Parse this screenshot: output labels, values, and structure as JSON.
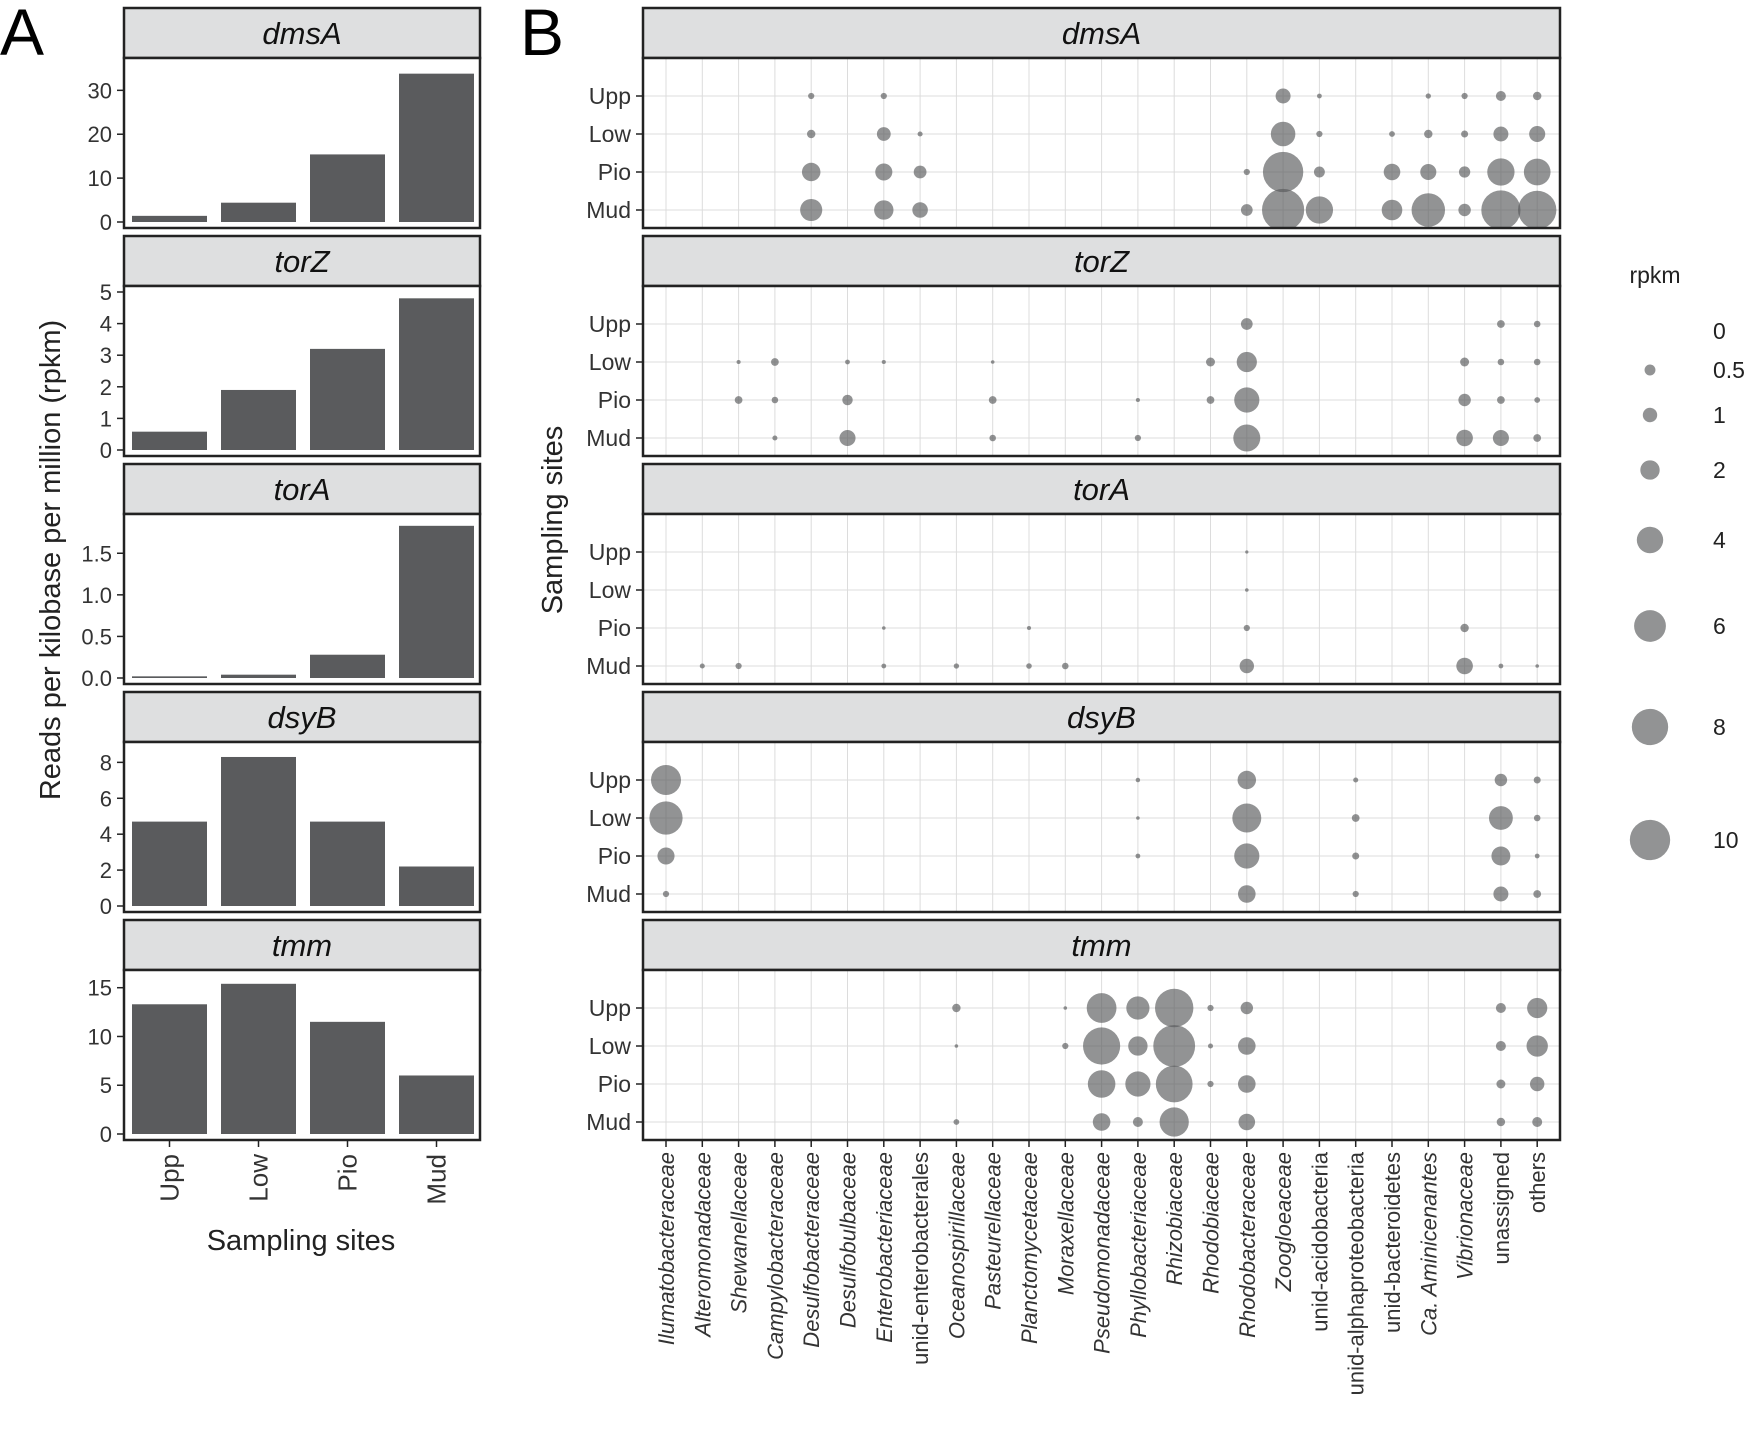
{
  "panel_letters": {
    "a": "A",
    "b": "B"
  },
  "panel_a": {
    "ylabel": "Reads per kilobase per million (rpkm)",
    "xlabel": "Sampling sites"
  },
  "panel_b": {
    "ylabel": "Sampling sites",
    "legend_title": "rpkm",
    "legend": {
      "labels": [
        "0",
        "0.5",
        "1",
        "2",
        "4",
        "6",
        "8",
        "10"
      ],
      "values": [
        0,
        0.5,
        1,
        2,
        4,
        6,
        8,
        10
      ]
    }
  },
  "colors": {
    "bar": "#5a5b5d",
    "bubble": "#58595b",
    "strip": "#dedfe0",
    "grid": "#dcdcdc"
  },
  "chart_data": [
    {
      "panel": "A",
      "type": "bar",
      "title": "dmsA",
      "categories": [
        "Upp",
        "Low",
        "Pio",
        "Mud"
      ],
      "values": [
        1.4,
        4.4,
        15.4,
        33.8
      ],
      "ylim": [
        0,
        36
      ],
      "yticks": [
        0,
        10,
        20,
        30
      ]
    },
    {
      "panel": "A",
      "type": "bar",
      "title": "torZ",
      "categories": [
        "Upp",
        "Low",
        "Pio",
        "Mud"
      ],
      "values": [
        0.58,
        1.9,
        3.2,
        4.8
      ],
      "ylim": [
        0,
        5.0
      ],
      "yticks": [
        0,
        1,
        2,
        3,
        4,
        5
      ]
    },
    {
      "panel": "A",
      "type": "bar",
      "title": "torA",
      "categories": [
        "Upp",
        "Low",
        "Pio",
        "Mud"
      ],
      "values": [
        0.02,
        0.04,
        0.28,
        1.83
      ],
      "ylim": [
        0,
        1.9
      ],
      "yticks": [
        0.0,
        0.5,
        1.0,
        1.5
      ],
      "ytick_labels": [
        "0.0",
        "0.5",
        "1.0",
        "1.5"
      ]
    },
    {
      "panel": "A",
      "type": "bar",
      "title": "dsyB",
      "categories": [
        "Upp",
        "Low",
        "Pio",
        "Mud"
      ],
      "values": [
        4.7,
        8.3,
        4.7,
        2.2
      ],
      "ylim": [
        0,
        8.8
      ],
      "yticks": [
        0,
        2,
        4,
        6,
        8
      ]
    },
    {
      "panel": "A",
      "type": "bar",
      "title": "tmm",
      "categories": [
        "Upp",
        "Low",
        "Pio",
        "Mud"
      ],
      "values": [
        13.3,
        15.4,
        11.5,
        6.0
      ],
      "ylim": [
        0,
        16.2
      ],
      "yticks": [
        0,
        5,
        10,
        15
      ]
    },
    {
      "panel": "B",
      "type": "scatter",
      "sites": [
        "Upp",
        "Low",
        "Pio",
        "Mud"
      ],
      "taxa": [
        {
          "label": "Ilumatobacteraceae",
          "italic": true
        },
        {
          "label": "Alteromonadaceae",
          "italic": true
        },
        {
          "label": "Shewanellaceae",
          "italic": true
        },
        {
          "label": "Campylobacteraceae",
          "italic": true
        },
        {
          "label": "Desulfobacteraceae",
          "italic": true
        },
        {
          "label": "Desulfobulbaceae",
          "italic": true
        },
        {
          "label": "Enterobacteriaceae",
          "italic": true
        },
        {
          "label": "unid-enterobacterales",
          "italic": false
        },
        {
          "label": "Oceanospirillaceae",
          "italic": true
        },
        {
          "label": "Pasteurellaceae",
          "italic": true
        },
        {
          "label": "Planctomycetaceae",
          "italic": true
        },
        {
          "label": "Moraxellaceae",
          "italic": true
        },
        {
          "label": "Pseudomonadaceae",
          "italic": true
        },
        {
          "label": "Phyllobacteriaceae",
          "italic": true
        },
        {
          "label": "Rhizobiaceae",
          "italic": true
        },
        {
          "label": "Rhodobiaceae",
          "italic": true
        },
        {
          "label": "Rhodobacteraceae",
          "italic": true
        },
        {
          "label": "Zoogloeaceae",
          "italic": true
        },
        {
          "label": "unid-acidobacteria",
          "italic": false
        },
        {
          "label": "unid-alphaproteobacteria",
          "italic": false
        },
        {
          "label": "unid-bacteroidetes",
          "italic": false
        },
        {
          "label": "Ca. Aminicenantes",
          "italic": true
        },
        {
          "label": "Vibrionaceae",
          "italic": true
        },
        {
          "label": "unassigned",
          "italic": false
        },
        {
          "label": "others",
          "italic": false
        }
      ],
      "facets": [
        {
          "gene": "dmsA",
          "points": [
            [
              4,
              "Upp",
              0.1
            ],
            [
              4,
              "Low",
              0.25
            ],
            [
              4,
              "Pio",
              1.8
            ],
            [
              4,
              "Mud",
              2.7
            ],
            [
              6,
              "Upp",
              0.1
            ],
            [
              6,
              "Low",
              0.9
            ],
            [
              6,
              "Pio",
              1.5
            ],
            [
              6,
              "Mud",
              2.0
            ],
            [
              7,
              "Low",
              0.05
            ],
            [
              7,
              "Pio",
              0.75
            ],
            [
              7,
              "Mud",
              1.2
            ],
            [
              16,
              "Pio",
              0.1
            ],
            [
              16,
              "Mud",
              0.6
            ],
            [
              17,
              "Upp",
              1.1
            ],
            [
              17,
              "Low",
              3.4
            ],
            [
              17,
              "Pio",
              10.0
            ],
            [
              17,
              "Mud",
              11.0
            ],
            [
              18,
              "Upp",
              0.04
            ],
            [
              18,
              "Low",
              0.1
            ],
            [
              18,
              "Pio",
              0.5
            ],
            [
              18,
              "Mud",
              4.3
            ],
            [
              20,
              "Low",
              0.08
            ],
            [
              20,
              "Pio",
              1.4
            ],
            [
              20,
              "Mud",
              2.3
            ],
            [
              21,
              "Upp",
              0.06
            ],
            [
              21,
              "Low",
              0.25
            ],
            [
              21,
              "Pio",
              1.3
            ],
            [
              21,
              "Mud",
              6.7
            ],
            [
              22,
              "Upp",
              0.1
            ],
            [
              22,
              "Low",
              0.15
            ],
            [
              22,
              "Pio",
              0.55
            ],
            [
              22,
              "Mud",
              0.7
            ],
            [
              23,
              "Upp",
              0.4
            ],
            [
              23,
              "Low",
              1.1
            ],
            [
              23,
              "Pio",
              4.3
            ],
            [
              23,
              "Mud",
              9.4
            ],
            [
              24,
              "Upp",
              0.25
            ],
            [
              24,
              "Low",
              1.3
            ],
            [
              24,
              "Pio",
              4.1
            ],
            [
              24,
              "Mud",
              9.0
            ]
          ]
        },
        {
          "gene": "torZ",
          "points": [
            [
              2,
              "Low",
              0.02
            ],
            [
              2,
              "Pio",
              0.2
            ],
            [
              3,
              "Low",
              0.2
            ],
            [
              3,
              "Pio",
              0.12
            ],
            [
              3,
              "Mud",
              0.05
            ],
            [
              5,
              "Low",
              0.04
            ],
            [
              5,
              "Pio",
              0.45
            ],
            [
              5,
              "Mud",
              1.3
            ],
            [
              6,
              "Low",
              0.02
            ],
            [
              9,
              "Low",
              0.01
            ],
            [
              9,
              "Pio",
              0.2
            ],
            [
              9,
              "Mud",
              0.12
            ],
            [
              13,
              "Pio",
              0.02
            ],
            [
              13,
              "Mud",
              0.1
            ],
            [
              15,
              "Low",
              0.3
            ],
            [
              15,
              "Pio",
              0.2
            ],
            [
              16,
              "Upp",
              0.6
            ],
            [
              16,
              "Low",
              2.2
            ],
            [
              16,
              "Pio",
              3.6
            ],
            [
              16,
              "Mud",
              4.2
            ],
            [
              22,
              "Low",
              0.3
            ],
            [
              22,
              "Pio",
              0.7
            ],
            [
              22,
              "Mud",
              1.4
            ],
            [
              23,
              "Upp",
              0.2
            ],
            [
              23,
              "Low",
              0.12
            ],
            [
              23,
              "Pio",
              0.2
            ],
            [
              23,
              "Mud",
              1.3
            ],
            [
              24,
              "Upp",
              0.12
            ],
            [
              24,
              "Low",
              0.12
            ],
            [
              24,
              "Pio",
              0.08
            ],
            [
              24,
              "Mud",
              0.2
            ]
          ]
        },
        {
          "gene": "torA",
          "points": [
            [
              1,
              "Mud",
              0.05
            ],
            [
              2,
              "Mud",
              0.1
            ],
            [
              6,
              "Pio",
              0.01
            ],
            [
              6,
              "Mud",
              0.04
            ],
            [
              8,
              "Mud",
              0.06
            ],
            [
              10,
              "Pio",
              0.02
            ],
            [
              10,
              "Mud",
              0.07
            ],
            [
              11,
              "Mud",
              0.12
            ],
            [
              16,
              "Upp",
              0.005
            ],
            [
              16,
              "Low",
              0.01
            ],
            [
              16,
              "Pio",
              0.1
            ],
            [
              16,
              "Mud",
              1.0
            ],
            [
              22,
              "Pio",
              0.25
            ],
            [
              22,
              "Mud",
              1.4
            ],
            [
              23,
              "Mud",
              0.04
            ],
            [
              24,
              "Mud",
              0.01
            ]
          ]
        },
        {
          "gene": "dsyB",
          "points": [
            [
              0,
              "Upp",
              5.3
            ],
            [
              0,
              "Low",
              6.6
            ],
            [
              0,
              "Pio",
              1.5
            ],
            [
              0,
              "Mud",
              0.1
            ],
            [
              13,
              "Upp",
              0.03
            ],
            [
              13,
              "Low",
              0.01
            ],
            [
              13,
              "Pio",
              0.04
            ],
            [
              16,
              "Upp",
              1.8
            ],
            [
              16,
              "Low",
              4.9
            ],
            [
              16,
              "Pio",
              3.6
            ],
            [
              16,
              "Mud",
              1.6
            ],
            [
              19,
              "Upp",
              0.05
            ],
            [
              19,
              "Low",
              0.2
            ],
            [
              19,
              "Pio",
              0.15
            ],
            [
              19,
              "Mud",
              0.1
            ],
            [
              23,
              "Upp",
              0.7
            ],
            [
              23,
              "Low",
              3.2
            ],
            [
              23,
              "Pio",
              1.9
            ],
            [
              23,
              "Mud",
              1.1
            ],
            [
              24,
              "Upp",
              0.15
            ],
            [
              24,
              "Low",
              0.12
            ],
            [
              24,
              "Pio",
              0.04
            ],
            [
              24,
              "Mud",
              0.2
            ]
          ]
        },
        {
          "gene": "tmm",
          "points": [
            [
              8,
              "Upp",
              0.25
            ],
            [
              8,
              "Low",
              0.01
            ],
            [
              8,
              "Mud",
              0.08
            ],
            [
              11,
              "Upp",
              0.01
            ],
            [
              11,
              "Low",
              0.1
            ],
            [
              12,
              "Upp",
              5.2
            ],
            [
              12,
              "Low",
              8.4
            ],
            [
              12,
              "Pio",
              4.4
            ],
            [
              12,
              "Mud",
              1.6
            ],
            [
              13,
              "Upp",
              3.0
            ],
            [
              13,
              "Low",
              2.0
            ],
            [
              13,
              "Pio",
              3.6
            ],
            [
              13,
              "Mud",
              0.4
            ],
            [
              14,
              "Upp",
              9.0
            ],
            [
              14,
              "Low",
              10.8
            ],
            [
              14,
              "Pio",
              8.2
            ],
            [
              14,
              "Mud",
              5.0
            ],
            [
              15,
              "Upp",
              0.1
            ],
            [
              15,
              "Low",
              0.05
            ],
            [
              15,
              "Pio",
              0.1
            ],
            [
              16,
              "Upp",
              0.7
            ],
            [
              16,
              "Low",
              1.6
            ],
            [
              16,
              "Pio",
              1.6
            ],
            [
              16,
              "Mud",
              1.4
            ],
            [
              23,
              "Upp",
              0.4
            ],
            [
              23,
              "Low",
              0.4
            ],
            [
              23,
              "Pio",
              0.3
            ],
            [
              23,
              "Mud",
              0.25
            ],
            [
              24,
              "Upp",
              2.2
            ],
            [
              24,
              "Low",
              2.5
            ],
            [
              24,
              "Pio",
              1.0
            ],
            [
              24,
              "Mud",
              0.4
            ]
          ]
        }
      ]
    }
  ]
}
